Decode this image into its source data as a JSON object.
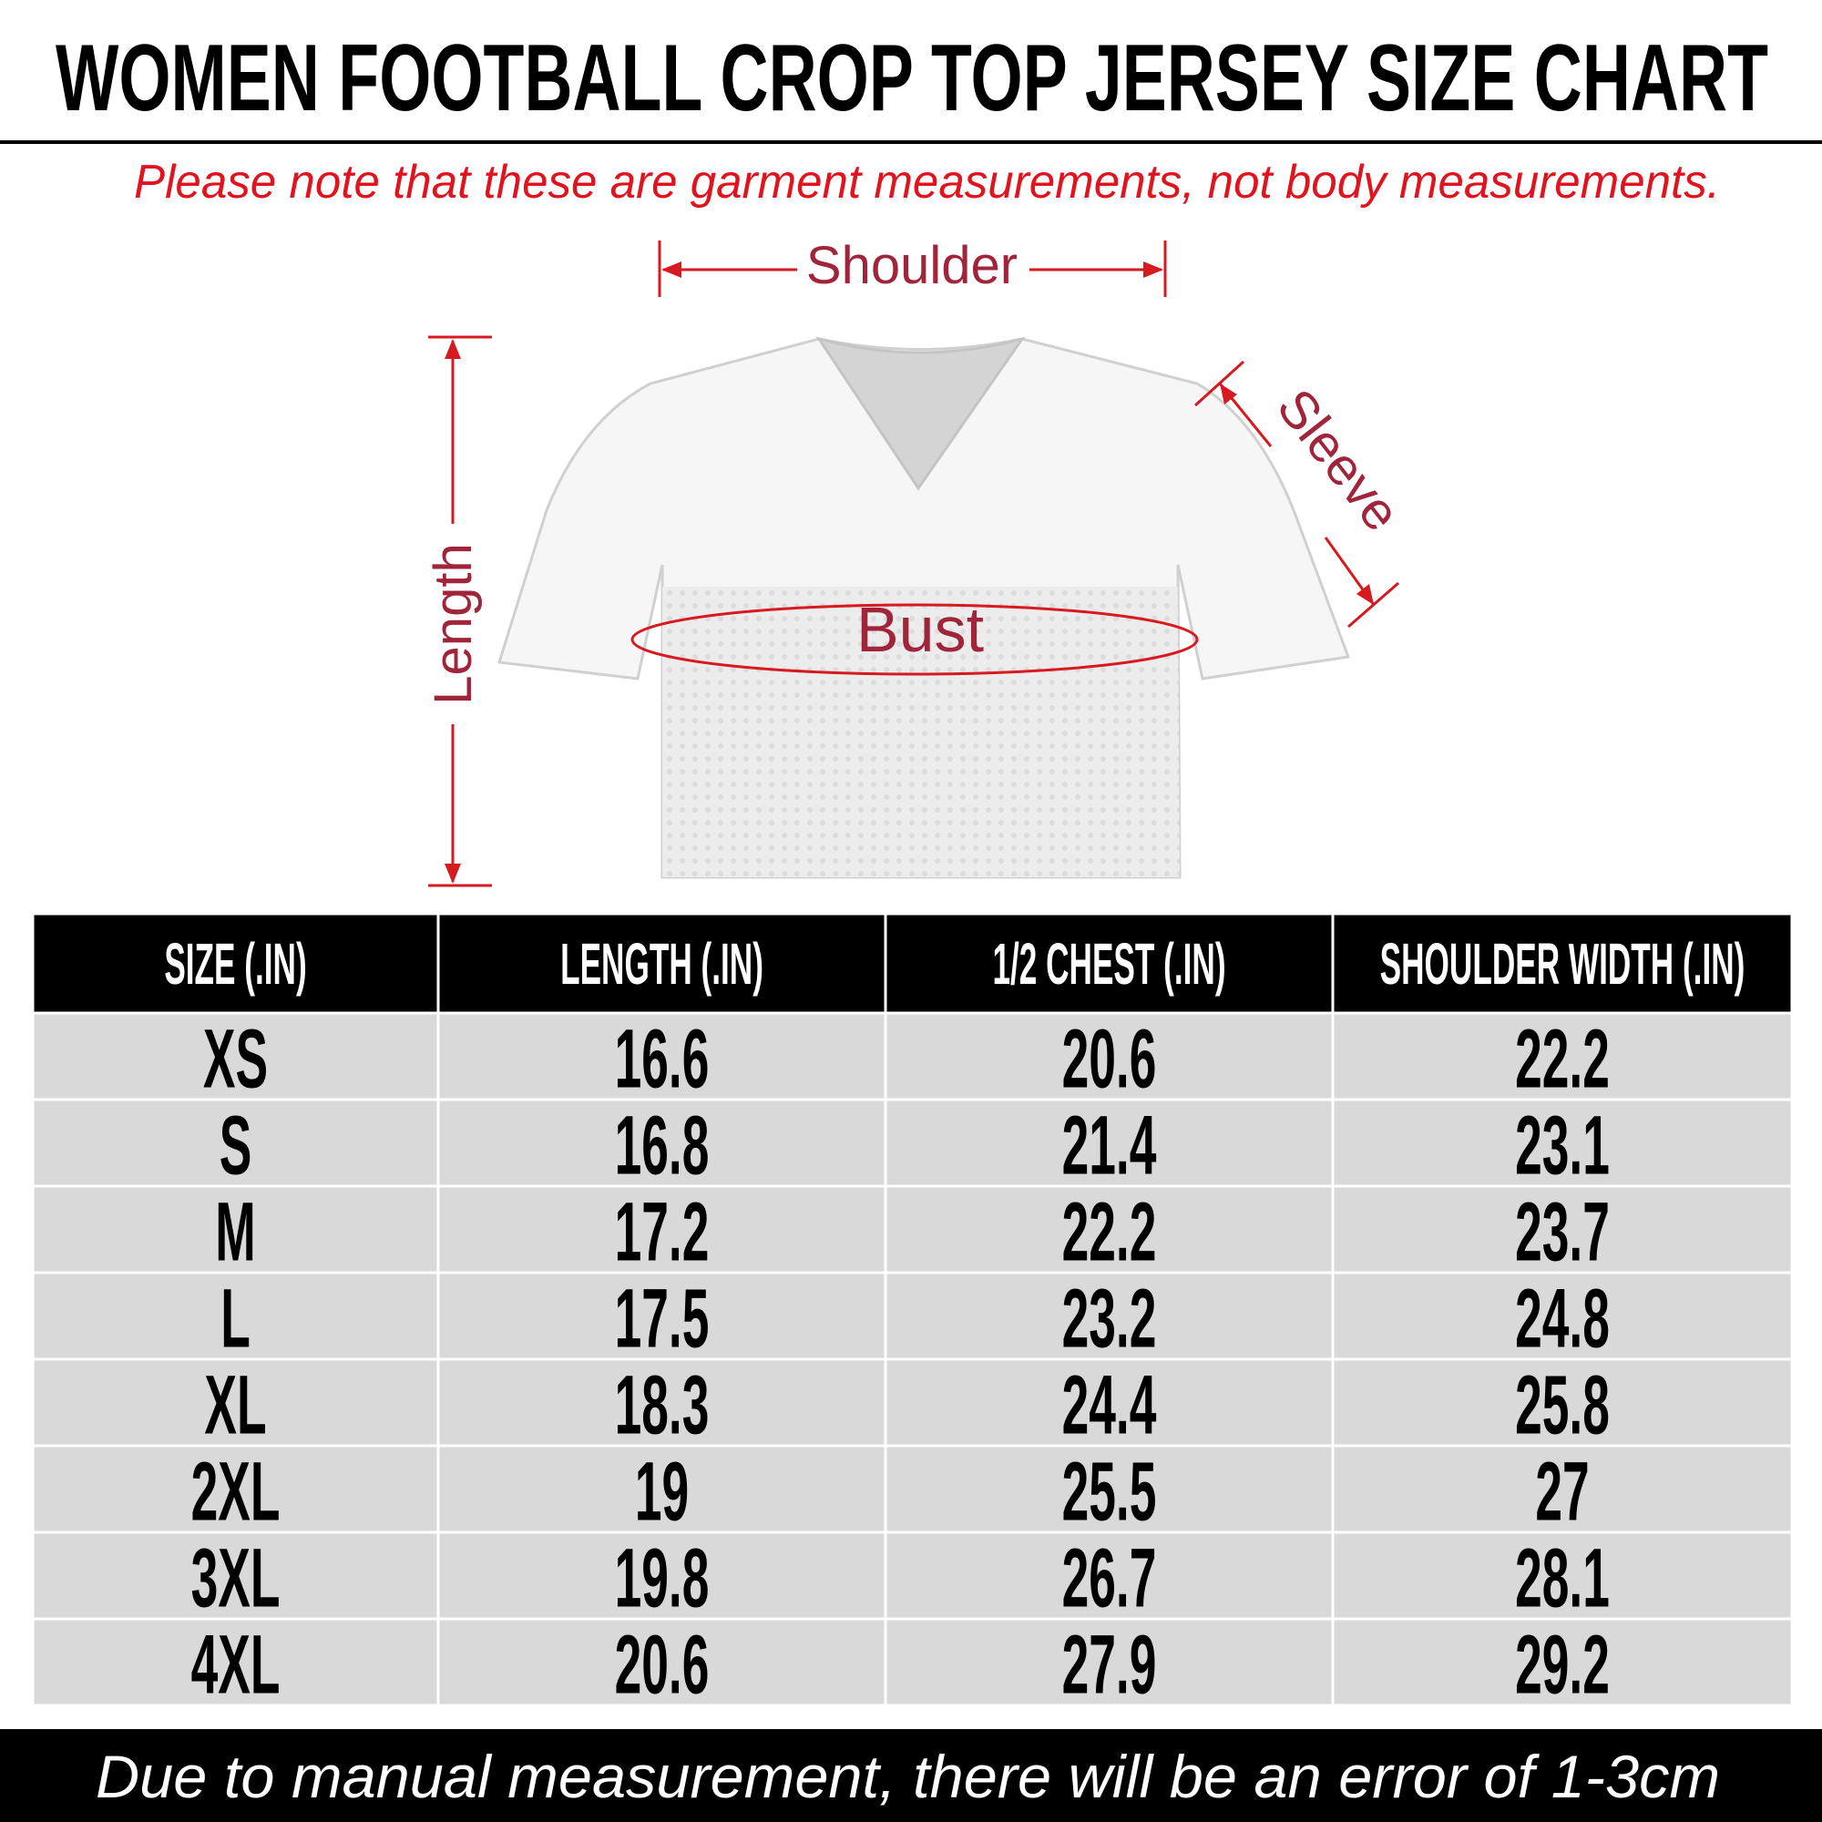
{
  "header": {
    "title": "WOMEN FOOTBALL CROP TOP JERSEY SIZE CHART",
    "note": "Please note that these are garment measurements, not body measurements."
  },
  "diagram": {
    "shoulder": "Shoulder",
    "length": "Length",
    "sleeve": "Sleeve",
    "bust": "Bust"
  },
  "table": {
    "columns": [
      "SIZE (.IN)",
      "LENGTH (.IN)",
      "1/2 CHEST (.IN)",
      "SHOULDER WIDTH (.IN)"
    ],
    "rows": [
      [
        "XS",
        16.6,
        20.6,
        22.2
      ],
      [
        "S",
        16.8,
        21.4,
        23.1
      ],
      [
        "M",
        17.2,
        22.2,
        23.7
      ],
      [
        "L",
        17.5,
        23.2,
        24.8
      ],
      [
        "XL",
        18.3,
        24.4,
        25.8
      ],
      [
        "2XL",
        19,
        25.5,
        27
      ],
      [
        "3XL",
        19.8,
        26.7,
        28.1
      ],
      [
        "4XL",
        20.6,
        27.9,
        29.2
      ]
    ]
  },
  "footer": "Due to manual measurement, there will be an error of 1-3cm"
}
